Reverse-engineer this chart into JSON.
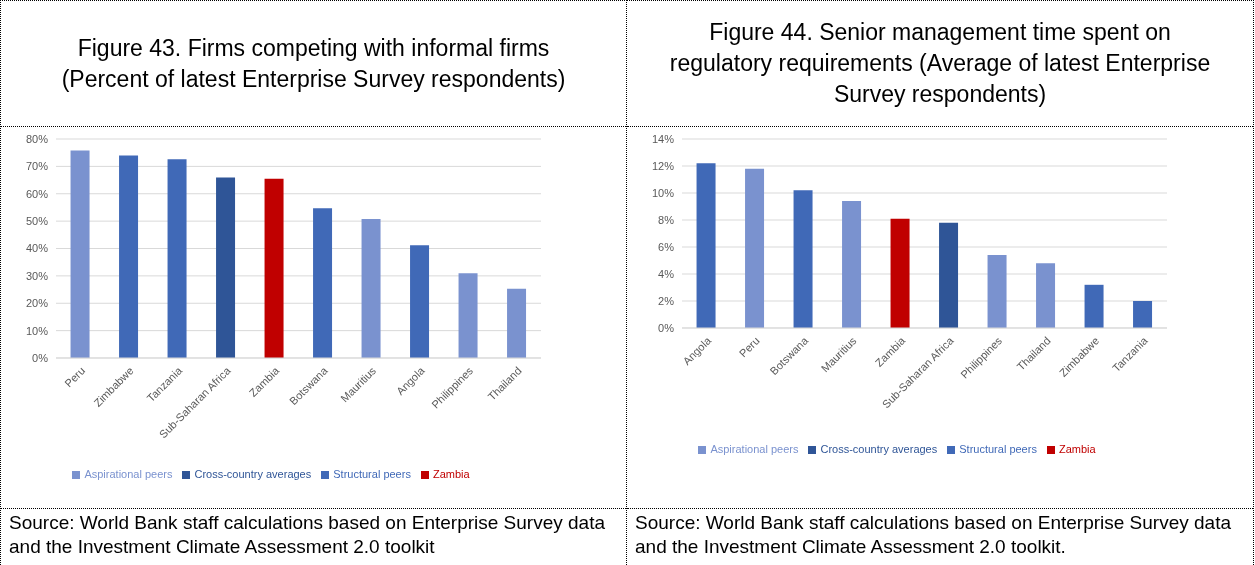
{
  "chart_data": [
    {
      "type": "bar",
      "title": "Figure 43. Firms competing with informal firms (Percent of latest Enterprise Survey respondents)",
      "stacked": true,
      "categories": [
        "Peru",
        "Zimbabwe",
        "Tanzania",
        "Sub-Saharan Africa",
        "Zambia",
        "Botswana",
        "Mauritius",
        "Angola",
        "Philippines",
        "Thailand"
      ],
      "series": [
        {
          "name": "Cross-country averages",
          "color": "#2f5597",
          "values": [
            null,
            null,
            null,
            65.9,
            null,
            null,
            null,
            null,
            null,
            null
          ]
        },
        {
          "name": "Structural peers",
          "color": "#4069b7",
          "values": [
            null,
            74,
            72.6,
            null,
            null,
            54.7,
            null,
            41.2,
            null,
            null
          ]
        },
        {
          "name": "Aspirational peers",
          "color": "#7a92cf",
          "values": [
            75.8,
            null,
            null,
            null,
            null,
            null,
            50.8,
            null,
            31,
            25.3
          ]
        },
        {
          "name": "Zambia",
          "color": "#c00000",
          "values": [
            null,
            null,
            null,
            null,
            65.5,
            null,
            null,
            null,
            null,
            null
          ]
        }
      ],
      "ylim": [
        0,
        80
      ],
      "yticks": [
        {
          "value": 0,
          "label": "0%"
        },
        {
          "value": 10,
          "label": "10%"
        },
        {
          "value": 20,
          "label": "20%"
        },
        {
          "value": 30,
          "label": "30%"
        },
        {
          "value": 40,
          "label": "40%"
        },
        {
          "value": 50,
          "label": "50%"
        },
        {
          "value": 60,
          "label": "60%"
        },
        {
          "value": 70,
          "label": "70%"
        },
        {
          "value": 80,
          "label": "80%"
        }
      ],
      "grid": "y",
      "legend": "bottom",
      "annotations": [
        "Source: World Bank staff calculations based on Enterprise Survey data and the Investment Climate Assessment 2.0 toolkit"
      ]
    },
    {
      "type": "bar",
      "title": "Figure 44. Senior management time spent on regulatory requirements (Average of latest Enterprise Survey respondents)",
      "stacked": true,
      "categories": [
        "Angola",
        "Peru",
        "Botswana",
        "Mauritius",
        "Zambia",
        "Sub-Saharan Africa",
        "Philippines",
        "Thailand",
        "Zimbabwe",
        "Tanzania"
      ],
      "series": [
        {
          "name": "Cross-country averages",
          "color": "#2f5597",
          "values": [
            null,
            null,
            null,
            null,
            null,
            7.8,
            null,
            null,
            null,
            null
          ]
        },
        {
          "name": "Structural peers",
          "color": "#4069b7",
          "values": [
            12.2,
            null,
            10.2,
            null,
            null,
            null,
            null,
            null,
            3.2,
            2.0
          ]
        },
        {
          "name": "Aspirational peers",
          "color": "#7a92cf",
          "values": [
            null,
            11.8,
            null,
            9.4,
            null,
            null,
            5.4,
            4.8,
            null,
            null
          ]
        },
        {
          "name": "Zambia",
          "color": "#c00000",
          "values": [
            null,
            null,
            null,
            null,
            8.1,
            null,
            null,
            null,
            null,
            null
          ]
        }
      ],
      "ylim": [
        0,
        14
      ],
      "yticks": [
        {
          "value": 0,
          "label": "0%"
        },
        {
          "value": 2,
          "label": "2%"
        },
        {
          "value": 4,
          "label": "4%"
        },
        {
          "value": 6,
          "label": "6%"
        },
        {
          "value": 8,
          "label": "8%"
        },
        {
          "value": 10,
          "label": "10%"
        },
        {
          "value": 12,
          "label": "12%"
        },
        {
          "value": 14,
          "label": "14%"
        }
      ],
      "grid": "y",
      "legend": "bottom",
      "annotations": [
        "Source: World Bank staff calculations based on Enterprise Survey data and the Investment Climate Assessment 2.0 toolkit."
      ]
    }
  ]
}
